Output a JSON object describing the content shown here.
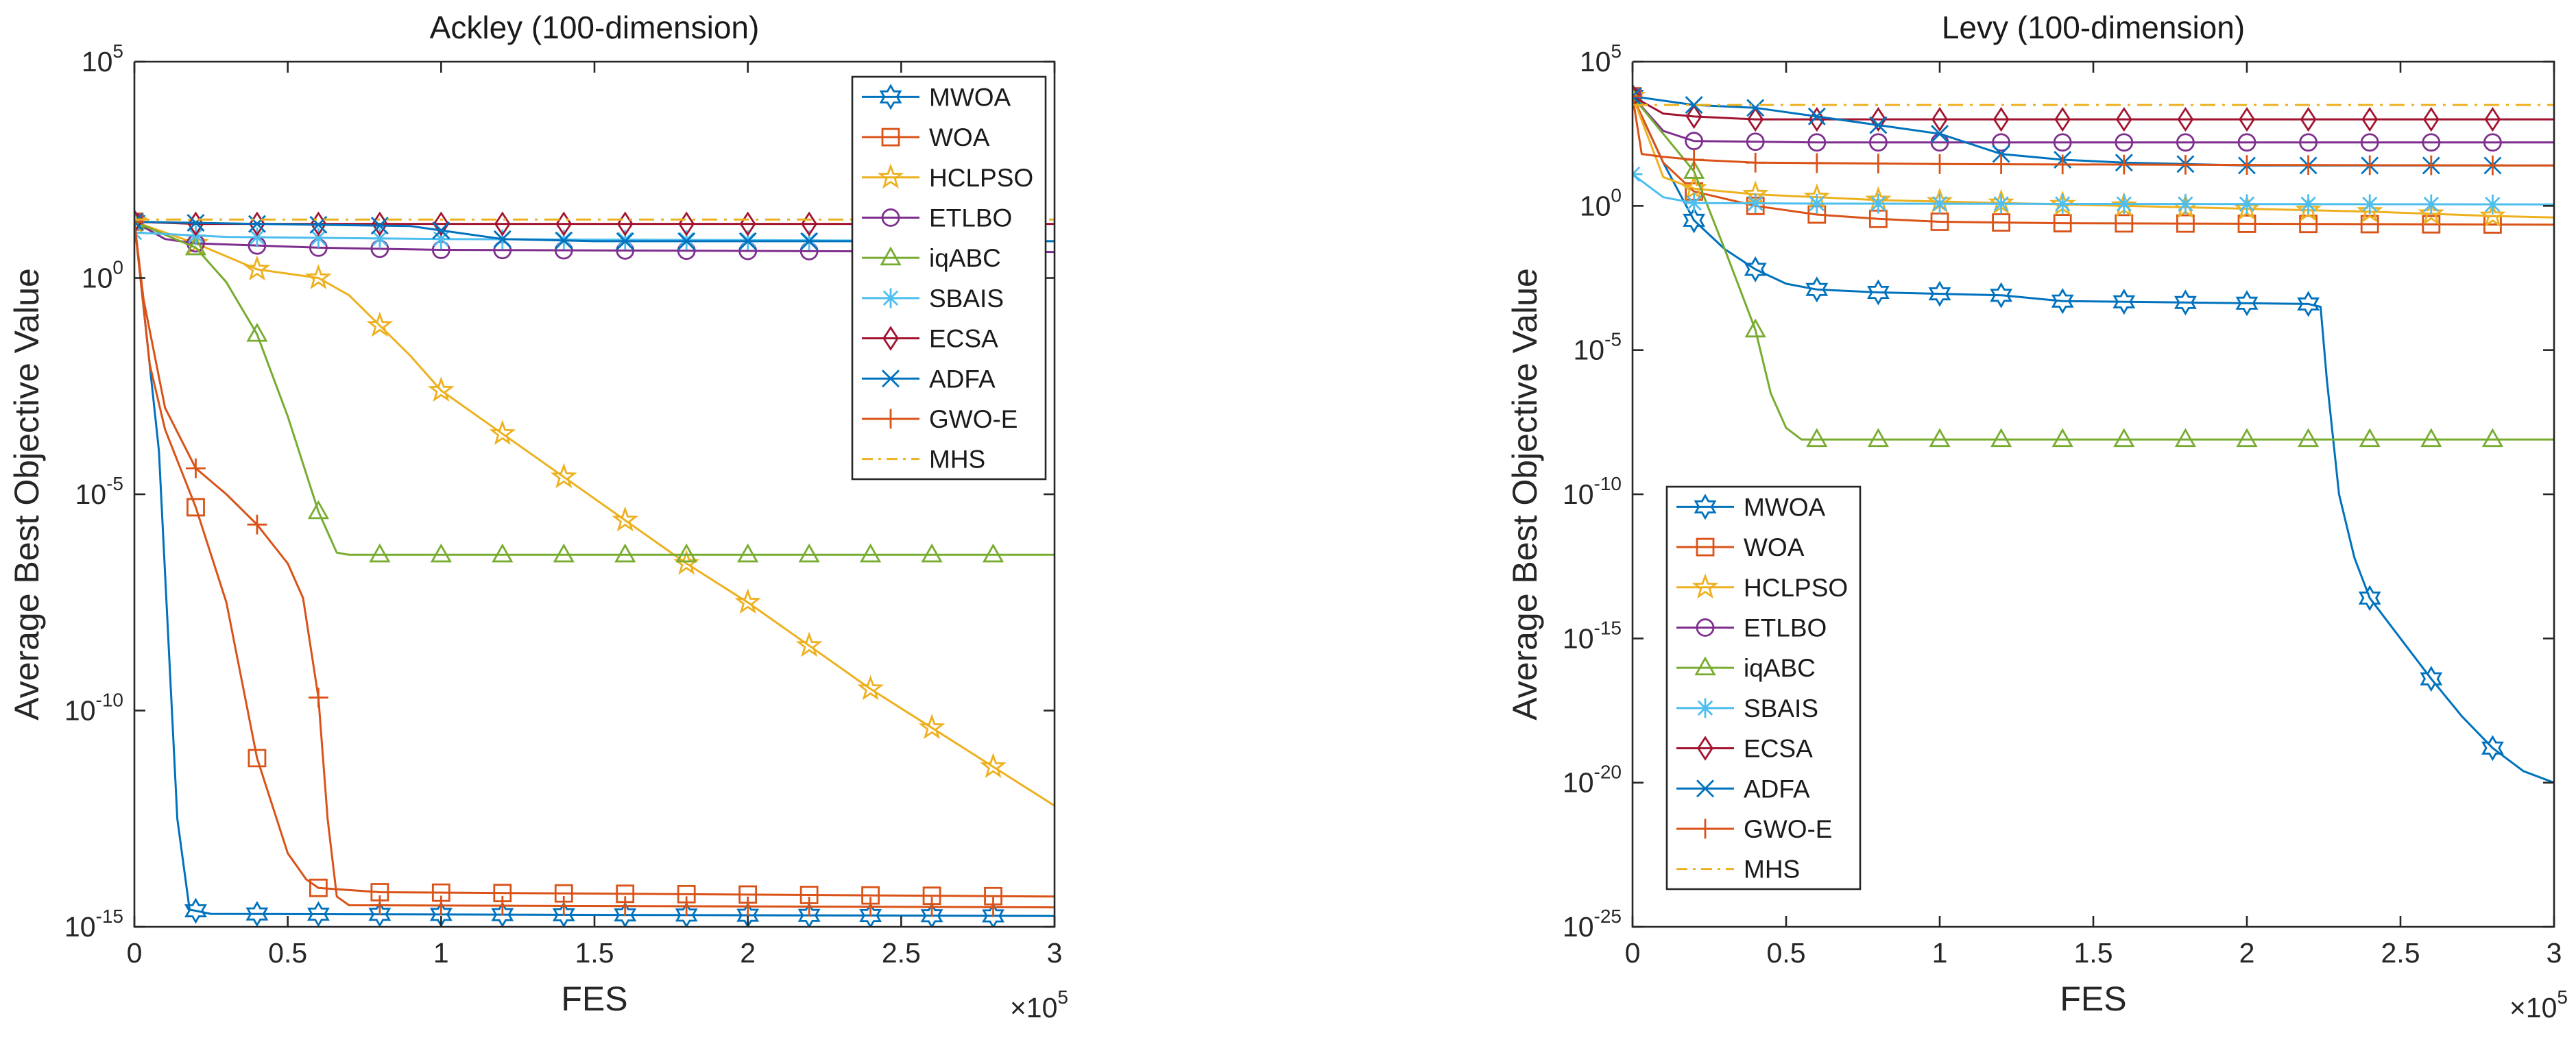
{
  "chart_data": [
    {
      "type": "line",
      "title": "Ackley (100-dimension)",
      "xlabel": "FES",
      "ylabel": "Average Best Objective Value",
      "x_multiplier_base": "×10",
      "x_multiplier_exp": "5",
      "xlim": [
        0,
        3
      ],
      "ylim_log10": [
        -15,
        5
      ],
      "xticks": [
        "0",
        "0.5",
        "1",
        "1.5",
        "2",
        "2.5",
        "3"
      ],
      "yticks": [
        {
          "base": "10",
          "exp": "-15",
          "value": -15
        },
        {
          "base": "10",
          "exp": "-10",
          "value": -10
        },
        {
          "base": "10",
          "exp": "-5",
          "value": -5
        },
        {
          "base": "10",
          "exp": "0",
          "value": 0
        },
        {
          "base": "10",
          "exp": "5",
          "value": 5
        }
      ],
      "y_scale": "log",
      "legend_position": "top-right",
      "series": [
        {
          "name": "MWOA",
          "color": "#0072BD",
          "style": "solid",
          "marker": "hexagram",
          "points": [
            [
              0,
              1.3
            ],
            [
              0.08,
              -4
            ],
            [
              0.14,
              -12.5
            ],
            [
              0.18,
              -14.6
            ],
            [
              0.25,
              -14.7
            ],
            [
              3,
              -14.75
            ]
          ]
        },
        {
          "name": "WOA",
          "color": "#D95319",
          "style": "solid",
          "marker": "square",
          "points": [
            [
              0,
              1.3
            ],
            [
              0.05,
              -2
            ],
            [
              0.1,
              -3.5
            ],
            [
              0.2,
              -5.3
            ],
            [
              0.3,
              -7.5
            ],
            [
              0.4,
              -11.1
            ],
            [
              0.5,
              -13.3
            ],
            [
              0.56,
              -13.9
            ],
            [
              0.6,
              -14.1
            ],
            [
              0.8,
              -14.2
            ],
            [
              3,
              -14.3
            ]
          ]
        },
        {
          "name": "HCLPSO",
          "color": "#EDB120",
          "style": "solid",
          "marker": "pentagram",
          "points": [
            [
              0,
              1.3
            ],
            [
              0.2,
              0.8
            ],
            [
              0.4,
              0.2
            ],
            [
              0.6,
              0.0
            ],
            [
              0.7,
              -0.4
            ],
            [
              0.8,
              -1.1
            ],
            [
              0.9,
              -1.8
            ],
            [
              1.0,
              -2.6
            ],
            [
              1.2,
              -3.6
            ],
            [
              1.4,
              -4.6
            ],
            [
              1.6,
              -5.6
            ],
            [
              1.8,
              -6.6
            ],
            [
              2.0,
              -7.5
            ],
            [
              2.2,
              -8.5
            ],
            [
              2.4,
              -9.5
            ],
            [
              2.6,
              -10.4
            ],
            [
              2.8,
              -11.3
            ],
            [
              3.0,
              -12.2
            ]
          ]
        },
        {
          "name": "ETLBO",
          "color": "#7E2F8E",
          "style": "solid",
          "marker": "circle",
          "points": [
            [
              0,
              1.3
            ],
            [
              0.1,
              0.9
            ],
            [
              0.2,
              0.8
            ],
            [
              0.6,
              0.7
            ],
            [
              1.0,
              0.65
            ],
            [
              3,
              0.6
            ]
          ]
        },
        {
          "name": "iqABC",
          "color": "#77AC30",
          "style": "solid",
          "marker": "triangle",
          "points": [
            [
              0,
              1.3
            ],
            [
              0.1,
              1.0
            ],
            [
              0.2,
              0.7
            ],
            [
              0.3,
              -0.1
            ],
            [
              0.4,
              -1.3
            ],
            [
              0.5,
              -3.2
            ],
            [
              0.6,
              -5.4
            ],
            [
              0.66,
              -6.35
            ],
            [
              0.7,
              -6.4
            ],
            [
              3,
              -6.4
            ]
          ]
        },
        {
          "name": "SBAIS",
          "color": "#4DBEEE",
          "style": "solid",
          "marker": "asterisk",
          "points": [
            [
              0,
              1.05
            ],
            [
              0.3,
              0.95
            ],
            [
              1.0,
              0.9
            ],
            [
              3,
              0.85
            ]
          ]
        },
        {
          "name": "ECSA",
          "color": "#A2142F",
          "style": "solid",
          "marker": "diamond",
          "points": [
            [
              0,
              1.3
            ],
            [
              0.2,
              1.25
            ],
            [
              3,
              1.25
            ]
          ]
        },
        {
          "name": "ADFA",
          "color": "#0072BD",
          "style": "solid",
          "marker": "x",
          "points": [
            [
              0,
              1.3
            ],
            [
              0.4,
              1.25
            ],
            [
              0.9,
              1.2
            ],
            [
              1.0,
              1.1
            ],
            [
              1.2,
              0.9
            ],
            [
              1.5,
              0.85
            ],
            [
              3,
              0.85
            ]
          ]
        },
        {
          "name": "GWO-E",
          "color": "#D95319",
          "style": "solid",
          "marker": "plus",
          "points": [
            [
              0,
              1.3
            ],
            [
              0.03,
              -0.5
            ],
            [
              0.1,
              -3.0
            ],
            [
              0.2,
              -4.4
            ],
            [
              0.3,
              -5.0
            ],
            [
              0.4,
              -5.7
            ],
            [
              0.5,
              -6.6
            ],
            [
              0.55,
              -7.4
            ],
            [
              0.6,
              -9.7
            ],
            [
              0.63,
              -12.5
            ],
            [
              0.66,
              -14.3
            ],
            [
              0.7,
              -14.5
            ],
            [
              3,
              -14.55
            ]
          ]
        },
        {
          "name": "MHS",
          "color": "#EDB120",
          "style": "dashdot",
          "marker": "none",
          "points": [
            [
              0,
              1.35
            ],
            [
              3,
              1.35
            ]
          ]
        }
      ]
    },
    {
      "type": "line",
      "title": "Levy (100-dimension)",
      "xlabel": "FES",
      "ylabel": "Average Best Objective Value",
      "x_multiplier_base": "×10",
      "x_multiplier_exp": "5",
      "xlim": [
        0,
        3
      ],
      "ylim_log10": [
        -25,
        5
      ],
      "xticks": [
        "0",
        "0.5",
        "1",
        "1.5",
        "2",
        "2.5",
        "3"
      ],
      "yticks": [
        {
          "base": "10",
          "exp": "-25",
          "value": -25
        },
        {
          "base": "10",
          "exp": "-20",
          "value": -20
        },
        {
          "base": "10",
          "exp": "-15",
          "value": -15
        },
        {
          "base": "10",
          "exp": "-10",
          "value": -10
        },
        {
          "base": "10",
          "exp": "-5",
          "value": -5
        },
        {
          "base": "10",
          "exp": "0",
          "value": 0
        },
        {
          "base": "10",
          "exp": "5",
          "value": 5
        }
      ],
      "y_scale": "log",
      "legend_position": "bottom-left",
      "series": [
        {
          "name": "MWOA",
          "color": "#0072BD",
          "style": "solid",
          "marker": "hexagram",
          "points": [
            [
              0,
              3.8
            ],
            [
              0.1,
              1.5
            ],
            [
              0.2,
              -0.5
            ],
            [
              0.3,
              -1.5
            ],
            [
              0.4,
              -2.2
            ],
            [
              0.5,
              -2.7
            ],
            [
              0.6,
              -2.9
            ],
            [
              0.8,
              -3.0
            ],
            [
              1.0,
              -3.05
            ],
            [
              1.2,
              -3.1
            ],
            [
              1.4,
              -3.3
            ],
            [
              2.2,
              -3.4
            ],
            [
              2.24,
              -3.5
            ],
            [
              2.26,
              -6
            ],
            [
              2.3,
              -10.0
            ],
            [
              2.35,
              -12.2
            ],
            [
              2.4,
              -13.6
            ],
            [
              2.5,
              -15.0
            ],
            [
              2.6,
              -16.4
            ],
            [
              2.7,
              -17.7
            ],
            [
              2.8,
              -18.8
            ],
            [
              2.9,
              -19.6
            ],
            [
              3.0,
              -20.0
            ]
          ]
        },
        {
          "name": "WOA",
          "color": "#D95319",
          "style": "solid",
          "marker": "square",
          "points": [
            [
              0,
              3.8
            ],
            [
              0.1,
              1.5
            ],
            [
              0.2,
              0.5
            ],
            [
              0.4,
              0.0
            ],
            [
              0.6,
              -0.3
            ],
            [
              0.8,
              -0.45
            ],
            [
              1.0,
              -0.55
            ],
            [
              1.4,
              -0.6
            ],
            [
              2.0,
              -0.62
            ],
            [
              3,
              -0.65
            ]
          ]
        },
        {
          "name": "HCLPSO",
          "color": "#EDB120",
          "style": "solid",
          "marker": "pentagram",
          "points": [
            [
              0,
              3.8
            ],
            [
              0.1,
              1.0
            ],
            [
              0.2,
              0.6
            ],
            [
              0.4,
              0.4
            ],
            [
              0.8,
              0.2
            ],
            [
              1.2,
              0.1
            ],
            [
              1.6,
              0.0
            ],
            [
              2.0,
              -0.1
            ],
            [
              2.4,
              -0.2
            ],
            [
              2.8,
              -0.35
            ],
            [
              3,
              -0.4
            ]
          ]
        },
        {
          "name": "ETLBO",
          "color": "#7E2F8E",
          "style": "solid",
          "marker": "circle",
          "points": [
            [
              0,
              3.8
            ],
            [
              0.1,
              2.6
            ],
            [
              0.2,
              2.25
            ],
            [
              0.6,
              2.2
            ],
            [
              3,
              2.2
            ]
          ]
        },
        {
          "name": "iqABC",
          "color": "#77AC30",
          "style": "solid",
          "marker": "triangle",
          "points": [
            [
              0,
              3.8
            ],
            [
              0.1,
              2.5
            ],
            [
              0.2,
              1.2
            ],
            [
              0.3,
              -1.5
            ],
            [
              0.4,
              -4.3
            ],
            [
              0.45,
              -6.5
            ],
            [
              0.5,
              -7.7
            ],
            [
              0.55,
              -8.1
            ],
            [
              0.6,
              -8.1
            ],
            [
              3,
              -8.1
            ]
          ]
        },
        {
          "name": "SBAIS",
          "color": "#4DBEEE",
          "style": "solid",
          "marker": "asterisk",
          "points": [
            [
              0,
              1.1
            ],
            [
              0.1,
              0.3
            ],
            [
              0.2,
              0.1
            ],
            [
              0.6,
              0.08
            ],
            [
              3,
              0.05
            ]
          ]
        },
        {
          "name": "ECSA",
          "color": "#A2142F",
          "style": "solid",
          "marker": "diamond",
          "points": [
            [
              0,
              3.8
            ],
            [
              0.1,
              3.2
            ],
            [
              0.2,
              3.1
            ],
            [
              0.4,
              3.0
            ],
            [
              3,
              3.0
            ]
          ]
        },
        {
          "name": "ADFA",
          "color": "#0072BD",
          "style": "solid",
          "marker": "x",
          "points": [
            [
              0,
              3.8
            ],
            [
              0.2,
              3.5
            ],
            [
              0.4,
              3.4
            ],
            [
              0.6,
              3.1
            ],
            [
              0.8,
              2.8
            ],
            [
              1.0,
              2.5
            ],
            [
              1.2,
              1.8
            ],
            [
              1.4,
              1.6
            ],
            [
              1.6,
              1.5
            ],
            [
              2.0,
              1.4
            ],
            [
              3,
              1.4
            ]
          ]
        },
        {
          "name": "GWO-E",
          "color": "#D95319",
          "style": "solid",
          "marker": "plus",
          "points": [
            [
              0,
              3.8
            ],
            [
              0.03,
              1.8
            ],
            [
              0.1,
              1.7
            ],
            [
              0.2,
              1.6
            ],
            [
              0.4,
              1.5
            ],
            [
              1.0,
              1.45
            ],
            [
              2.0,
              1.42
            ],
            [
              3,
              1.4
            ]
          ]
        },
        {
          "name": "MHS",
          "color": "#EDB120",
          "style": "dashdot",
          "marker": "none",
          "points": [
            [
              0,
              3.5
            ],
            [
              3,
              3.5
            ]
          ]
        }
      ]
    }
  ]
}
